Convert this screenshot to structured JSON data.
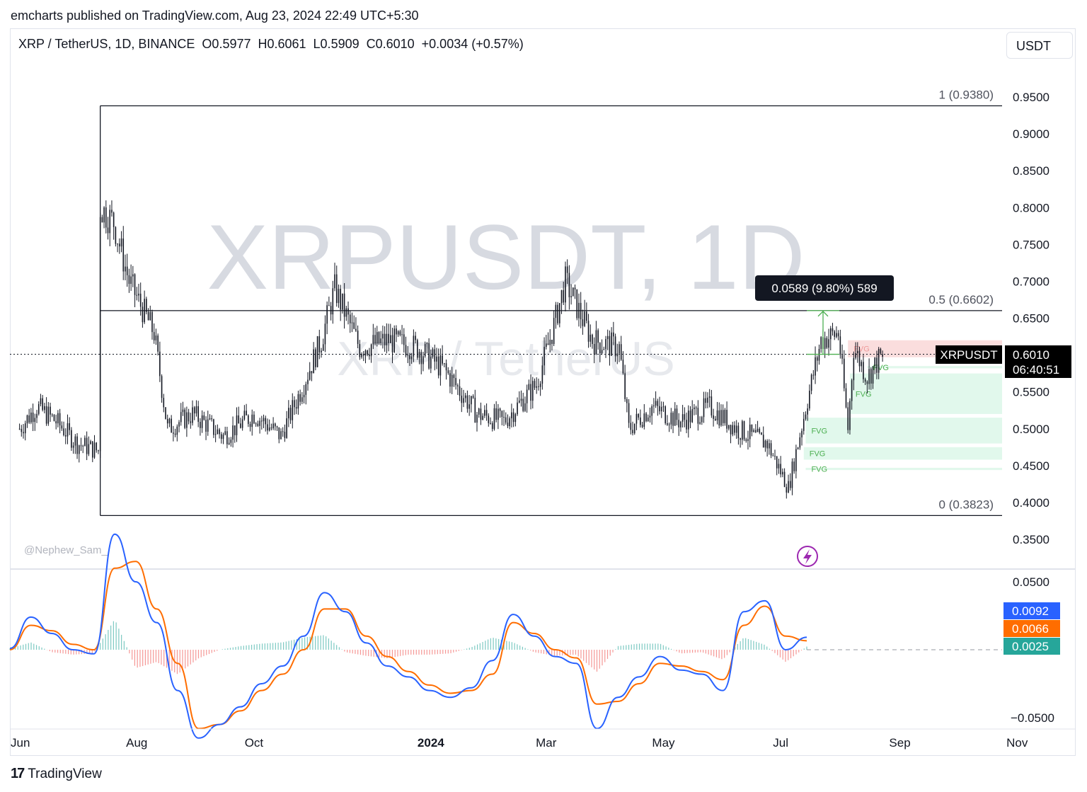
{
  "header": {
    "publisher": "emcharts published on TradingView.com, Aug 23, 2024 22:49 UTC+5:30"
  },
  "legend": {
    "text": "XRP / TetherUS, 1D, BINANCE  O0.5977  H0.6061  L0.5909  C0.6010  +0.0034 (+0.57%)"
  },
  "currency_button": {
    "label": "USDT"
  },
  "watermark": {
    "symbol": "XRPUSDT, 1D",
    "pair": "XRP / TetherUS"
  },
  "author_tag": "@Nephew_Sam_",
  "footer": {
    "brand": "TradingView",
    "mark": "17"
  },
  "price_label": {
    "symbol": "XRPUSDT",
    "price": "0.6010",
    "countdown": "06:40:51"
  },
  "measure_box": {
    "text": "0.0589 (9.80%) 589"
  },
  "colors": {
    "candle": "#131722",
    "fib_line": "#131722",
    "fvg_bear": "#f7c6c6",
    "fvg_bull": "#c8f3dc",
    "fvg_label": "#4caf50",
    "macd_line": "#2962ff",
    "signal_line": "#ff6d00",
    "hist_pos": "#26a69a",
    "hist_neg": "#ef5350",
    "price_bg": "#000000",
    "macd_badge": "#2962ff",
    "signal_badge": "#ff6d00",
    "hist_badge": "#26a69a",
    "measure_arrow": "#4caf50",
    "lightning": "#9c27b0"
  },
  "icons": {
    "alert": "lightning-icon"
  },
  "chart_data": [
    {
      "type": "candlestick",
      "title": "XRP / TetherUS, 1D, BINANCE",
      "y_ticks": [
        "0.9500",
        "0.9000",
        "0.8500",
        "0.8000",
        "0.7500",
        "0.7000",
        "0.6500",
        "0.5500",
        "0.5000",
        "0.4500",
        "0.4000",
        "0.3500"
      ],
      "ylim": [
        0.32,
        1.02
      ],
      "x_ticks": [
        "Jun",
        "Aug",
        "Oct",
        "2024",
        "Mar",
        "May",
        "Jul",
        "Sep",
        "Nov"
      ],
      "last": {
        "open": 0.5977,
        "high": 0.6061,
        "low": 0.5909,
        "close": 0.601,
        "change": 0.0034,
        "change_pct": 0.57
      },
      "price_path": [
        {
          "date": "2023-06-01",
          "close": 0.5
        },
        {
          "date": "2023-06-10",
          "close": 0.53
        },
        {
          "date": "2023-06-20",
          "close": 0.51
        },
        {
          "date": "2023-07-01",
          "close": 0.48
        },
        {
          "date": "2023-07-12",
          "close": 0.47
        },
        {
          "date": "2023-07-13",
          "close": 0.8
        },
        {
          "date": "2023-07-20",
          "close": 0.78
        },
        {
          "date": "2023-07-28",
          "close": 0.7
        },
        {
          "date": "2023-08-10",
          "close": 0.63
        },
        {
          "date": "2023-08-17",
          "close": 0.5
        },
        {
          "date": "2023-08-30",
          "close": 0.52
        },
        {
          "date": "2023-09-15",
          "close": 0.49
        },
        {
          "date": "2023-10-01",
          "close": 0.52
        },
        {
          "date": "2023-10-15",
          "close": 0.49
        },
        {
          "date": "2023-10-25",
          "close": 0.55
        },
        {
          "date": "2023-11-05",
          "close": 0.62
        },
        {
          "date": "2023-11-12",
          "close": 0.69
        },
        {
          "date": "2023-11-25",
          "close": 0.61
        },
        {
          "date": "2023-12-10",
          "close": 0.62
        },
        {
          "date": "2023-12-25",
          "close": 0.61
        },
        {
          "date": "2024-01-08",
          "close": 0.58
        },
        {
          "date": "2024-01-25",
          "close": 0.52
        },
        {
          "date": "2024-02-08",
          "close": 0.51
        },
        {
          "date": "2024-02-25",
          "close": 0.56
        },
        {
          "date": "2024-03-05",
          "close": 0.64
        },
        {
          "date": "2024-03-11",
          "close": 0.7
        },
        {
          "date": "2024-03-25",
          "close": 0.62
        },
        {
          "date": "2024-04-08",
          "close": 0.61
        },
        {
          "date": "2024-04-13",
          "close": 0.5
        },
        {
          "date": "2024-04-25",
          "close": 0.53
        },
        {
          "date": "2024-05-10",
          "close": 0.51
        },
        {
          "date": "2024-05-25",
          "close": 0.53
        },
        {
          "date": "2024-06-08",
          "close": 0.5
        },
        {
          "date": "2024-06-24",
          "close": 0.48
        },
        {
          "date": "2024-07-05",
          "close": 0.42
        },
        {
          "date": "2024-07-15",
          "close": 0.54
        },
        {
          "date": "2024-07-22",
          "close": 0.62
        },
        {
          "date": "2024-07-31",
          "close": 0.63
        },
        {
          "date": "2024-08-05",
          "close": 0.5
        },
        {
          "date": "2024-08-08",
          "close": 0.61
        },
        {
          "date": "2024-08-15",
          "close": 0.57
        },
        {
          "date": "2024-08-23",
          "close": 0.601
        }
      ],
      "fib_levels": [
        {
          "label": "1 (0.9380)",
          "value": 0.938
        },
        {
          "label": "0.5 (0.6602)",
          "value": 0.6602
        },
        {
          "label": "0 (0.3823)",
          "value": 0.3823
        }
      ],
      "fvg_zones": [
        {
          "label": "FVG",
          "kind": "bear",
          "top": 0.62,
          "bottom": 0.597,
          "start": "2024-08-05"
        },
        {
          "label": "FVG",
          "kind": "bull",
          "top": 0.585,
          "bottom": 0.582,
          "start": "2024-08-15"
        },
        {
          "label": "FVG",
          "kind": "bull",
          "top": 0.575,
          "bottom": 0.52,
          "start": "2024-08-06"
        },
        {
          "label": "FVG",
          "kind": "bull",
          "top": 0.515,
          "bottom": 0.48,
          "start": "2024-07-14"
        },
        {
          "label": "FVG",
          "kind": "bull",
          "top": 0.475,
          "bottom": 0.458,
          "start": "2024-07-13"
        },
        {
          "label": "FVG",
          "kind": "bull",
          "top": 0.447,
          "bottom": 0.444,
          "start": "2024-07-14"
        }
      ],
      "measure": {
        "from": 0.601,
        "to": 0.6602,
        "label": "0.0589 (9.80%) 589"
      }
    },
    {
      "type": "line",
      "title": "MACD",
      "y_ticks": [
        "0.0500",
        "−0.0500"
      ],
      "ylim": [
        -0.085,
        0.082
      ],
      "series": [
        {
          "values": [
            0.001,
            0.024,
            0.012,
            0.0,
            -0.003,
            0.085,
            0.05,
            0.02,
            -0.03,
            -0.065,
            -0.055,
            -0.042,
            -0.025,
            -0.012,
            0.01,
            0.042,
            0.028,
            0.005,
            -0.012,
            -0.02,
            -0.03,
            -0.035,
            -0.028,
            -0.008,
            0.026,
            0.01,
            -0.005,
            -0.01,
            -0.058,
            -0.035,
            -0.02,
            -0.005,
            -0.015,
            -0.018,
            -0.03,
            0.028,
            0.036,
            0.0,
            0.0092
          ]
        },
        {
          "values": [
            0.0,
            0.018,
            0.014,
            0.004,
            0.0,
            0.06,
            0.065,
            0.03,
            -0.01,
            -0.058,
            -0.055,
            -0.045,
            -0.03,
            -0.018,
            0.0,
            0.03,
            0.03,
            0.01,
            -0.005,
            -0.016,
            -0.026,
            -0.032,
            -0.03,
            -0.018,
            0.02,
            0.012,
            0.0,
            -0.006,
            -0.04,
            -0.038,
            -0.025,
            -0.01,
            -0.012,
            -0.016,
            -0.022,
            0.018,
            0.032,
            0.01,
            0.0066
          ]
        },
        {
          "values": [
            0.0025
          ]
        }
      ],
      "last_values": {
        "macd": "0.0092",
        "signal": "0.0066",
        "histogram": "0.0025"
      }
    }
  ]
}
